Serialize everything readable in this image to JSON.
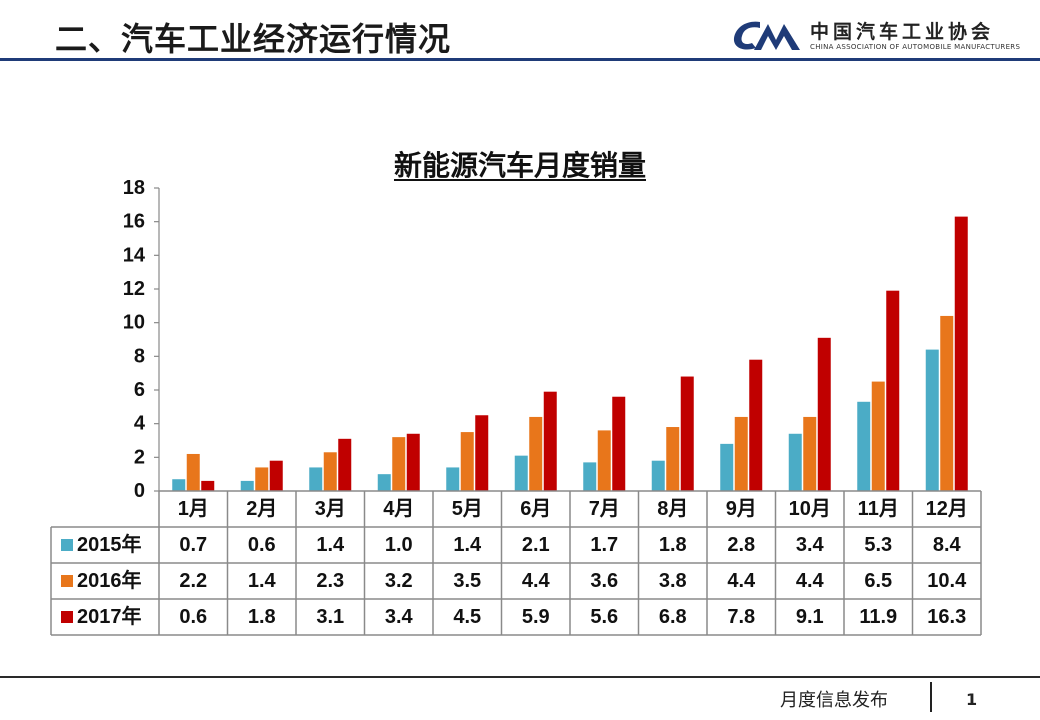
{
  "header": {
    "title": "二、汽车工业经济运行情况",
    "logo_text": "中国汽车工业协会",
    "logo_subtext": "CHINA ASSOCIATION OF AUTOMOBILE MANUFACTURERS"
  },
  "footer": {
    "text": "月度信息发布",
    "page_number": "1"
  },
  "colors": {
    "header_rule": "#1f3b78",
    "series_2015": "#4bacc6",
    "series_2016": "#e8761b",
    "series_2017": "#c00000"
  },
  "chart_data": {
    "type": "bar",
    "title": "新能源汽车月度销量",
    "xlabel": "",
    "ylabel": "",
    "ylim": [
      0,
      18
    ],
    "yticks": [
      "0",
      "2",
      "4",
      "6",
      "8",
      "10",
      "12",
      "14",
      "16",
      "18"
    ],
    "categories": [
      "1月",
      "2月",
      "3月",
      "4月",
      "5月",
      "6月",
      "7月",
      "8月",
      "9月",
      "10月",
      "11月",
      "12月"
    ],
    "series": [
      {
        "name": "2015年",
        "color": "#4bacc6",
        "values": [
          0.7,
          0.6,
          1.4,
          1.0,
          1.4,
          2.1,
          1.7,
          1.8,
          2.8,
          3.4,
          5.3,
          8.4
        ],
        "labels": [
          "0.7",
          "0.6",
          "1.4",
          "1.0",
          "1.4",
          "2.1",
          "1.7",
          "1.8",
          "2.8",
          "3.4",
          "5.3",
          "8.4"
        ]
      },
      {
        "name": "2016年",
        "color": "#e8761b",
        "values": [
          2.2,
          1.4,
          2.3,
          3.2,
          3.5,
          4.4,
          3.6,
          3.8,
          4.4,
          4.4,
          6.5,
          10.4
        ],
        "labels": [
          "2.2",
          "1.4",
          "2.3",
          "3.2",
          "3.5",
          "4.4",
          "3.6",
          "3.8",
          "4.4",
          "4.4",
          "6.5",
          "10.4"
        ]
      },
      {
        "name": "2017年",
        "color": "#c00000",
        "values": [
          0.6,
          1.8,
          3.1,
          3.4,
          4.5,
          5.9,
          5.6,
          6.8,
          7.8,
          9.1,
          11.9,
          16.3
        ],
        "labels": [
          "0.6",
          "1.8",
          "3.1",
          "3.4",
          "4.5",
          "5.9",
          "5.6",
          "6.8",
          "7.8",
          "9.1",
          "11.9",
          "16.3"
        ]
      }
    ],
    "grid": false,
    "legend": "data-table"
  }
}
